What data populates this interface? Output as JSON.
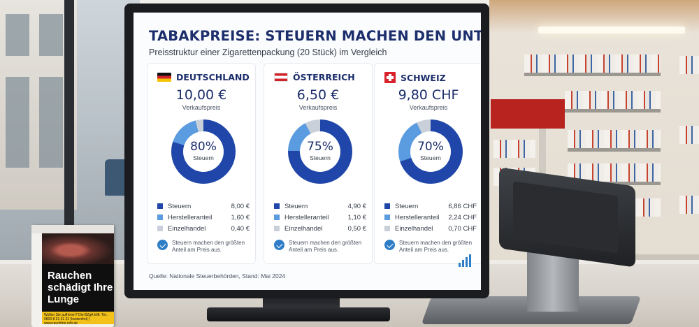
{
  "screen": {
    "title": "TABAKPREISE: STEUERN MACHEN DEN UNTERSCHIED",
    "subtitle": "Preisstruktur einer Zigarettenpackung (20 Stück) im Vergleich",
    "price_label": "Verkaufspreis",
    "donut_caption": "Steuern",
    "footer": "Quelle: Nationale Steuerbehörden, Stand: Mai 2024",
    "colors": {
      "steuern": "#1f46a8",
      "hersteller": "#5b9bdf",
      "handel": "#c9d0da"
    },
    "countries": [
      {
        "name": "DEUTSCHLAND",
        "flag": "de-flag",
        "price": "10,00 €",
        "tax_pct": "80%",
        "shares": [
          0.8,
          0.16,
          0.04
        ],
        "legend": [
          {
            "label": "Steuern",
            "value": "8,00 €"
          },
          {
            "label": "Herstelleranteil",
            "value": "1,60 €"
          },
          {
            "label": "Einzelhandel",
            "value": "0,40 €"
          }
        ],
        "note": "Steuern machen den größten Anteil am Preis aus."
      },
      {
        "name": "ÖSTERREICH",
        "flag": "at-flag",
        "price": "6,50 €",
        "tax_pct": "75%",
        "shares": [
          0.754,
          0.169,
          0.077
        ],
        "legend": [
          {
            "label": "Steuern",
            "value": "4,90 €"
          },
          {
            "label": "Herstelleranteil",
            "value": "1,10 €"
          },
          {
            "label": "Einzelhandel",
            "value": "0,50 €"
          }
        ],
        "note": "Steuern machen den größten Anteil am Preis aus."
      },
      {
        "name": "SCHWEIZ",
        "flag": "ch-flag",
        "price": "9,80 CHF",
        "tax_pct": "70%",
        "shares": [
          0.7,
          0.229,
          0.071
        ],
        "legend": [
          {
            "label": "Steuern",
            "value": "6,86 CHF"
          },
          {
            "label": "Herstelleranteil",
            "value": "2,24 CHF"
          },
          {
            "label": "Einzelhandel",
            "value": "0,70 CHF"
          }
        ],
        "note": "Steuern machen den größten Anteil am Preis aus."
      }
    ]
  },
  "pack": {
    "warning": "Rauchen\nschädigt Ihre\nLunge",
    "strip": "Wollen Sie aufhören? Die BZgA hilft: Tel.: 0800 8 31 31 31 (kostenfrei) | www.rauchfrei-info.de"
  }
}
